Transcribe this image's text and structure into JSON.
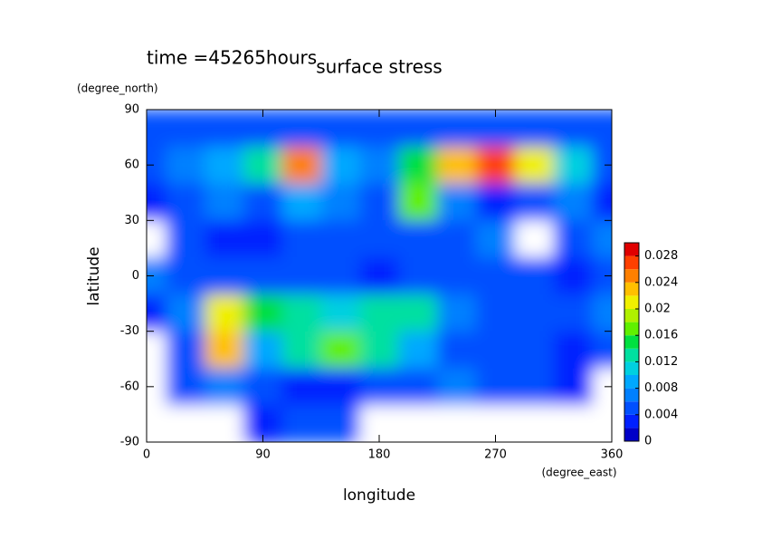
{
  "chart_data": {
    "type": "contour",
    "title": "surface stress",
    "subtitle": "time =45265hours",
    "x_label": "longitude",
    "x_unit": "(degree_east)",
    "y_label": "latitude",
    "y_unit": "(degree_north)",
    "xlim": [
      0,
      360
    ],
    "xticks": [
      0,
      90,
      180,
      270,
      360
    ],
    "ylim": [
      -90,
      90
    ],
    "yticks": [
      -90,
      -60,
      -30,
      0,
      30,
      60,
      90
    ],
    "x": [
      0,
      30,
      60,
      90,
      120,
      150,
      180,
      210,
      240,
      270,
      300,
      330,
      360
    ],
    "y": [
      80,
      60,
      40,
      20,
      0,
      -20,
      -40,
      -60,
      -80
    ],
    "z": [
      [
        0.004,
        0.005,
        0.005,
        0.004,
        0.004,
        0.004,
        0.004,
        0.004,
        0.004,
        0.004,
        0.004,
        0.004,
        0.004
      ],
      [
        0.004,
        0.006,
        0.008,
        0.012,
        0.025,
        0.008,
        0.006,
        0.014,
        0.022,
        0.026,
        0.02,
        0.01,
        0.004
      ],
      [
        0.002,
        0.004,
        0.006,
        0.004,
        0.008,
        0.006,
        0.004,
        0.016,
        0.006,
        0.002,
        0.004,
        0.006,
        0.002
      ],
      [
        0,
        0.004,
        0.002,
        0.002,
        0.004,
        0.004,
        0.004,
        0.004,
        0.004,
        0.006,
        0,
        0.004,
        0.006
      ],
      [
        0.006,
        0.004,
        0.004,
        0.004,
        0.004,
        0.004,
        0.002,
        0.004,
        0.004,
        0.004,
        0.004,
        0.002,
        0.004
      ],
      [
        0.002,
        0.006,
        0.02,
        0.014,
        0.012,
        0.01,
        0.012,
        0.012,
        0.006,
        0.004,
        0.004,
        0.004,
        0.006
      ],
      [
        0,
        0.004,
        0.022,
        0.008,
        0.012,
        0.016,
        0.012,
        0.008,
        0.004,
        0.004,
        0.004,
        0.002,
        0.004
      ],
      [
        0,
        0.004,
        0.006,
        0.004,
        0.002,
        0.002,
        0.004,
        0.004,
        0.006,
        0.004,
        0.004,
        0.002,
        0
      ],
      [
        0,
        0,
        0,
        0.002,
        0.004,
        0.004,
        0,
        0,
        0,
        0,
        0,
        0,
        0
      ]
    ],
    "levels": [
      0,
      0.002,
      0.004,
      0.006,
      0.008,
      0.01,
      0.012,
      0.014,
      0.016,
      0.018,
      0.02,
      0.022,
      0.024,
      0.026,
      0.028,
      0.03
    ],
    "colors": [
      "#0000c8",
      "#0020ff",
      "#0050ff",
      "#0080ff",
      "#00a8ff",
      "#00d0e0",
      "#00e0a0",
      "#00e040",
      "#60f000",
      "#b0f000",
      "#f0f000",
      "#ffc000",
      "#ff8000",
      "#ff4000",
      "#e00000"
    ],
    "clim": [
      0,
      0.03
    ],
    "cticks": [
      0,
      0.004,
      0.008,
      0.012,
      0.016,
      0.02,
      0.024,
      0.028
    ]
  }
}
